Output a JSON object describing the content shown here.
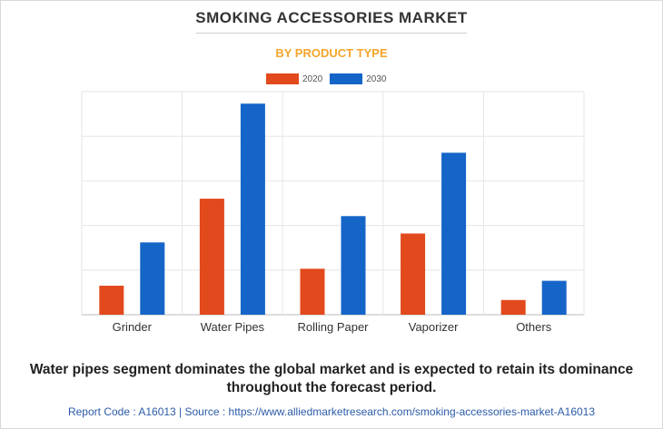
{
  "colors": {
    "s2020": "#e2491c",
    "s2030": "#1565c8",
    "title": "#333333",
    "subtitle": "#f4a52b",
    "link": "#2b5ba8"
  },
  "chart_data": {
    "type": "bar",
    "title": "SMOKING ACCESSORIES MARKET",
    "subtitle": "BY PRODUCT TYPE",
    "categories": [
      "Grinder",
      "Water Pipes",
      "Rolling Paper",
      "Vaporizer",
      "Others"
    ],
    "series": [
      {
        "name": "2020",
        "values": [
          6.5,
          26,
          10.3,
          18.2,
          3.3
        ]
      },
      {
        "name": "2030",
        "values": [
          16.2,
          47.3,
          22.1,
          36.3,
          7.6
        ]
      }
    ],
    "ylim": [
      0,
      50
    ],
    "grid": true,
    "legend": "top-center"
  },
  "footer": {
    "note": "Water pipes segment dominates the global market and is expected to retain its dominance throughout the forecast period.",
    "source": "Report Code : A16013  |  Source : https://www.alliedmarketresearch.com/smoking-accessories-market-A16013"
  }
}
